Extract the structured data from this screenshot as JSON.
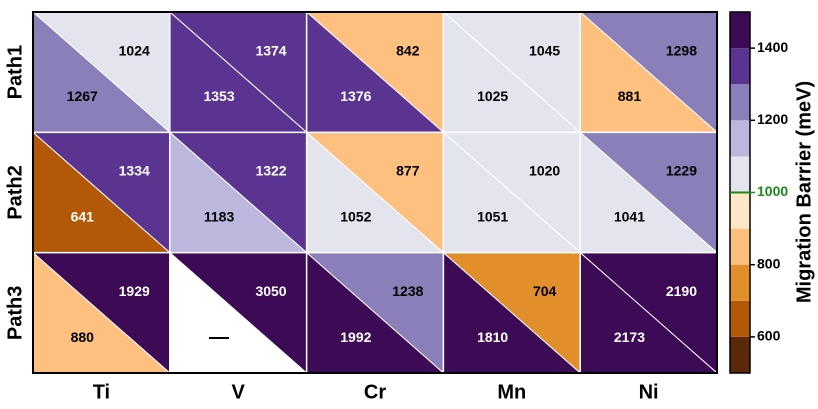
{
  "chart_data": {
    "type": "heatmap",
    "categories": [
      "Ti",
      "V",
      "Cr",
      "Mn",
      "Ni"
    ],
    "rows": [
      "Path1",
      "Path2",
      "Path3"
    ],
    "upper": [
      [
        1024,
        1374,
        842,
        1045,
        1298
      ],
      [
        1334,
        1322,
        877,
        1020,
        1229
      ],
      [
        1929,
        3050,
        1238,
        704,
        2190
      ]
    ],
    "lower": [
      [
        1267,
        1353,
        1376,
        1025,
        881
      ],
      [
        641,
        1183,
        1052,
        1051,
        1041
      ],
      [
        880,
        null,
        1992,
        1810,
        2173
      ]
    ],
    "lower_value_labels": [
      [
        null,
        null,
        null,
        null,
        null
      ],
      [
        null,
        null,
        null,
        null,
        null
      ],
      [
        null,
        "—",
        null,
        null,
        null
      ]
    ],
    "missing_color": "#ffffff",
    "colorbar_label": "Migration Barrier (meV)",
    "clim": [
      500,
      1500
    ],
    "cticks": [
      600,
      800,
      1000,
      1200,
      1400
    ],
    "color_bounds": [
      500,
      600,
      700,
      800,
      900,
      1000,
      1100,
      1200,
      1300,
      1400,
      1500
    ],
    "colors": [
      "#5a2a08",
      "#b35806",
      "#e08f2a",
      "#fdc07e",
      "#fee8c8",
      "#e4e4ef",
      "#bcb8dd",
      "#8a7fb9",
      "#5a3490",
      "#3d0a55"
    ],
    "highlight_value": 1000,
    "highlight_color": "#1a8a1a"
  }
}
